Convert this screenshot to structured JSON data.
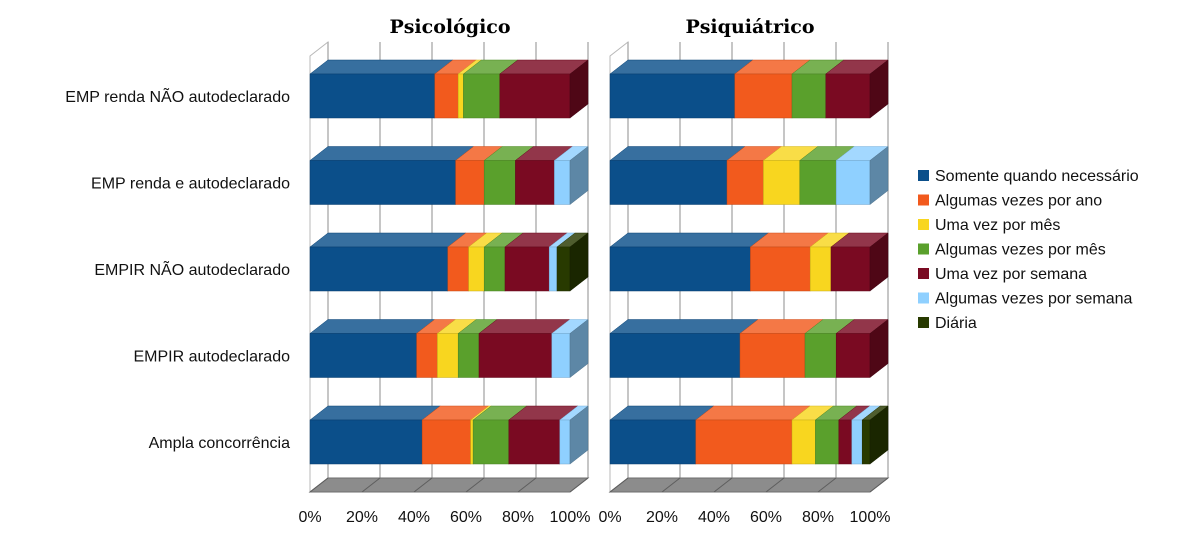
{
  "chart_data": {
    "type": "bar",
    "stacked": "percent",
    "orientation": "horizontal",
    "categories": [
      "EMP renda NÃO autodeclarado",
      "EMP renda e autodeclarado",
      "EMPIR NÃO autodeclarado",
      "EMPIR autodeclarado",
      "Ampla concorrência"
    ],
    "legend_position": "right",
    "grid": true,
    "xlim": [
      0,
      100
    ],
    "xticks": [
      "0%",
      "20%",
      "40%",
      "60%",
      "80%",
      "100%"
    ],
    "series_names": [
      "Somente quando necessário",
      "Algumas vezes por ano",
      "Uma vez por mês",
      "Algumas vezes por mês",
      "Uma vez por semana",
      "Algumas vezes por semana",
      "Diária"
    ],
    "colors": [
      "#0b4f8a",
      "#f25a1d",
      "#f8d61f",
      "#5aa02c",
      "#7a0a22",
      "#8fd0ff",
      "#283a00"
    ],
    "panels": [
      {
        "title": "Psicológico",
        "values": [
          [
            48,
            9,
            2,
            14,
            27,
            0,
            0
          ],
          [
            56,
            11,
            0,
            12,
            15,
            6,
            0
          ],
          [
            53,
            8,
            6,
            8,
            17,
            3,
            5
          ],
          [
            41,
            8,
            8,
            8,
            28,
            7,
            0
          ],
          [
            44,
            19,
            1,
            14,
            20,
            4,
            0
          ]
        ]
      },
      {
        "title": "Psiquiátrico",
        "values": [
          [
            48,
            22,
            0,
            13,
            17,
            0,
            0
          ],
          [
            45,
            14,
            14,
            14,
            0,
            13,
            0
          ],
          [
            54,
            23,
            8,
            0,
            15,
            0,
            0
          ],
          [
            50,
            25,
            0,
            12,
            13,
            0,
            0
          ],
          [
            33,
            37,
            9,
            9,
            5,
            4,
            3
          ]
        ]
      }
    ]
  }
}
